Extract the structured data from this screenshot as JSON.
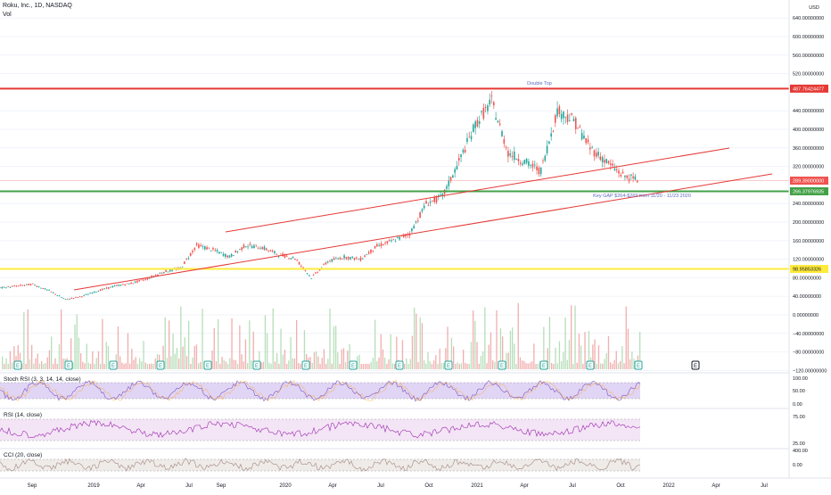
{
  "header": {
    "title": "Roku, Inc., 1D, NASDAQ",
    "subtitle": "Vol"
  },
  "axis": {
    "currency": "USD",
    "ticks": [
      "640.00000000",
      "600.00000000",
      "560.00000000",
      "520.00000000",
      "440.00000000",
      "400.00000000",
      "360.00000000",
      "320.00000000",
      "240.00000000",
      "200.00000000",
      "160.00000000",
      "120.00000000",
      "80.00000000",
      "40.00000000",
      "0.00000000",
      "−40.00000000",
      "−80.00000000",
      "−120.00000000"
    ],
    "tick_values": [
      640,
      600,
      560,
      520,
      440,
      400,
      360,
      320,
      240,
      200,
      160,
      120,
      80,
      40,
      0,
      -40,
      -80,
      -120
    ],
    "x_ticks": [
      "Sep",
      "2019",
      "Apr",
      "Jul",
      "Sep",
      "2020",
      "Apr",
      "Jul",
      "Oct",
      "2021",
      "Apr",
      "Jul",
      "Oct",
      "2022",
      "Apr",
      "Jul"
    ]
  },
  "price_tags": {
    "top": "487.76424477",
    "last": "289.39000000",
    "support": "266.37976935",
    "bottom": "98.95853326"
  },
  "annotations": {
    "double_top": "Double Top",
    "gap": "Key GAP $264-$269 from 11/20 - 11/23 2020"
  },
  "panels": {
    "stoch": {
      "label": "Stoch RSI (3, 3, 14, 14, close)",
      "ticks": [
        "100.00",
        "50.00",
        "0.00"
      ]
    },
    "rsi": {
      "label": "RSI (14, close)",
      "ticks": [
        "75.00",
        "25.00"
      ]
    },
    "cci": {
      "label": "CCI (20, close)",
      "ticks": [
        "400.00",
        "0.00"
      ]
    }
  },
  "earnings_marker": "E",
  "colors": {
    "up": "#26a69a",
    "down": "#ef5350",
    "resistance": "#e53935",
    "support": "#43a047",
    "yellow": "#ffeb3b",
    "stoch": "#7e57c2",
    "rsi": "#9c27b0",
    "cci": "#a1887f"
  },
  "chart_data": {
    "type": "line",
    "title": "Roku, Inc., 1D, NASDAQ",
    "ylabel": "USD",
    "ylim": [
      -120,
      660
    ],
    "x": [
      "2018-08",
      "2018-09",
      "2018-10",
      "2018-11",
      "2018-12",
      "2019-01",
      "2019-02",
      "2019-03",
      "2019-04",
      "2019-05",
      "2019-06",
      "2019-07",
      "2019-08",
      "2019-09",
      "2019-10",
      "2019-11",
      "2019-12",
      "2020-01",
      "2020-02",
      "2020-03",
      "2020-04",
      "2020-05",
      "2020-06",
      "2020-07",
      "2020-08",
      "2020-09",
      "2020-10",
      "2020-11",
      "2020-12",
      "2021-01",
      "2021-02",
      "2021-03",
      "2021-04",
      "2021-05",
      "2021-06",
      "2021-07",
      "2021-08",
      "2021-09",
      "2021-10",
      "2021-11"
    ],
    "series": [
      {
        "values": [
          58,
          62,
          66,
          52,
          33,
          40,
          52,
          62,
          68,
          78,
          93,
          100,
          150,
          140,
          125,
          150,
          145,
          130,
          122,
          80,
          115,
          125,
          120,
          148,
          160,
          175,
          240,
          255,
          330,
          410,
          460,
          350,
          330,
          310,
          440,
          420,
          360,
          330,
          300,
          289
        ]
      }
    ],
    "horizontal_levels": [
      487.76,
      289.39,
      266.38,
      98.96
    ]
  }
}
